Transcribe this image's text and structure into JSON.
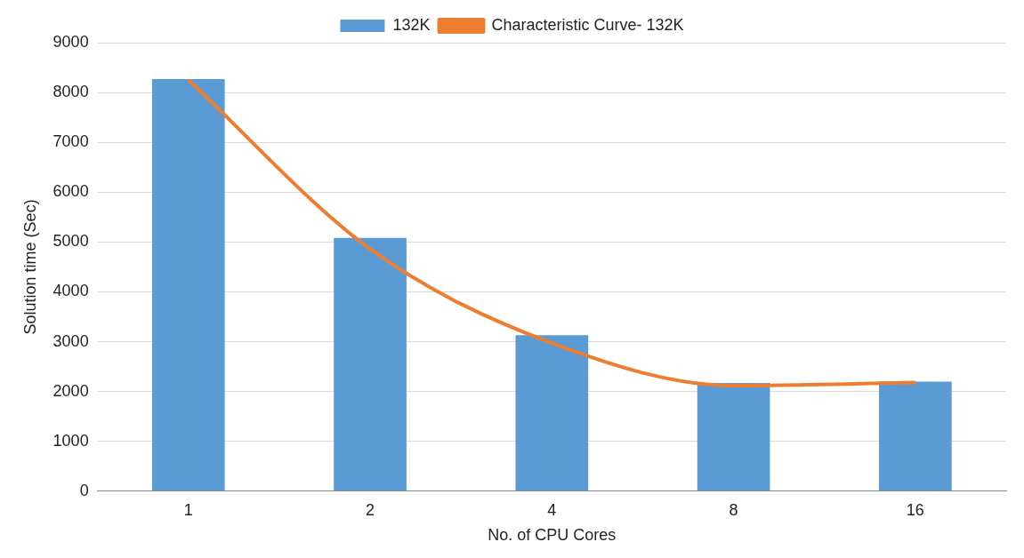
{
  "chart_data": {
    "type": "bar",
    "xlabel": "No. of CPU Cores",
    "ylabel": "Solution time (Sec)",
    "categories": [
      "1",
      "2",
      "4",
      "8",
      "16"
    ],
    "series": [
      {
        "name": "132K",
        "color": "#5b9bd5",
        "values": [
          8270,
          5080,
          3130,
          2170,
          2200
        ]
      },
      {
        "name": "Characteristic Curve- 132K",
        "type": "line",
        "color": "#ed7d31",
        "values": [
          8250,
          4860,
          2970,
          2120,
          2180
        ]
      }
    ],
    "ylim": [
      0,
      9000
    ],
    "yticks": [
      0,
      1000,
      2000,
      3000,
      4000,
      5000,
      6000,
      7000,
      8000,
      9000
    ],
    "grid": "y",
    "legend": "top",
    "marker": "none"
  }
}
